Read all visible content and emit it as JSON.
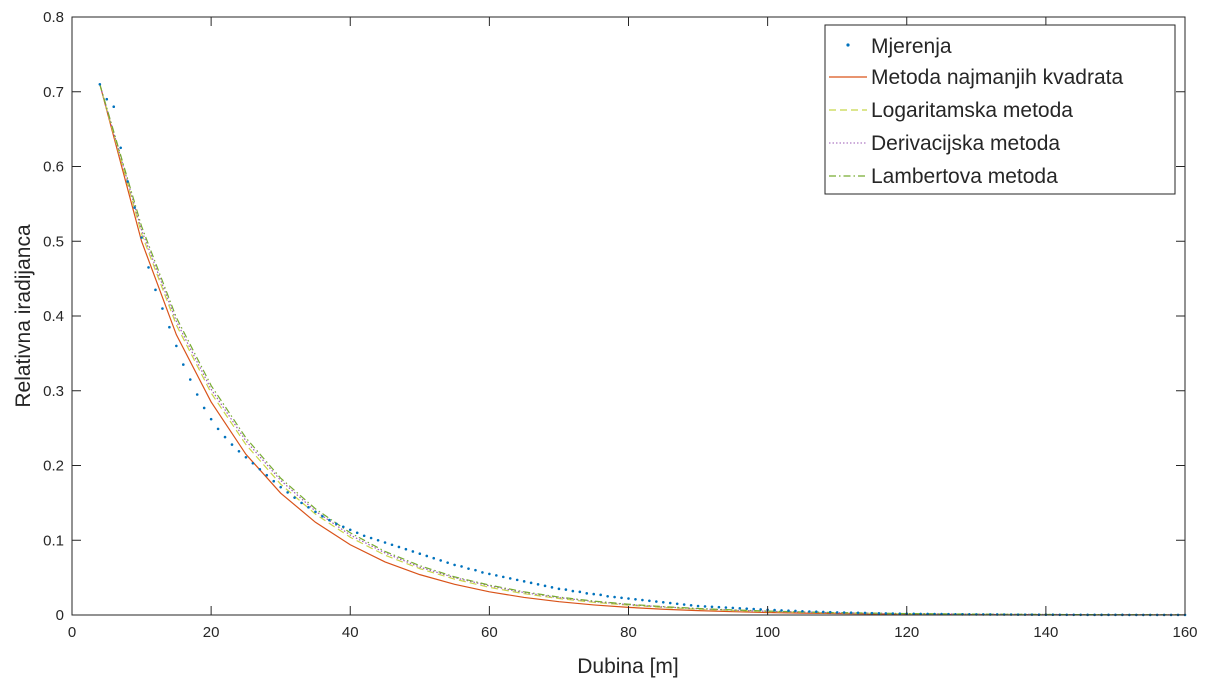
{
  "chart_data": {
    "type": "line",
    "title": "",
    "xlabel": "Dubina [m]",
    "ylabel": "Relativna iradijanca",
    "xlim": [
      0,
      160
    ],
    "ylim": [
      0,
      0.8
    ],
    "xticks": [
      0,
      20,
      40,
      60,
      80,
      100,
      120,
      140,
      160
    ],
    "yticks": [
      0,
      0.1,
      0.2,
      0.3,
      0.4,
      0.5,
      0.6,
      0.7,
      0.8
    ],
    "xtick_labels": [
      "0",
      "20",
      "40",
      "60",
      "80",
      "100",
      "120",
      "140",
      "160"
    ],
    "ytick_labels": [
      "0",
      "0.1",
      "0.2",
      "0.3",
      "0.4",
      "0.5",
      "0.6",
      "0.7",
      "0.8"
    ],
    "grid": false,
    "legend_position": "top-right",
    "series": [
      {
        "name": "Mjerenja",
        "style": "points",
        "color": "#0072BD",
        "x": [
          4,
          5,
          6,
          7,
          8,
          9,
          10,
          11,
          12,
          13,
          14,
          15,
          16,
          17,
          18,
          19,
          20,
          21,
          22,
          23,
          24,
          25,
          26,
          27,
          28,
          29,
          30,
          31,
          32,
          33,
          34,
          35,
          36,
          37,
          38,
          39,
          40,
          41,
          42,
          43,
          44,
          45,
          46,
          47,
          48,
          49,
          50,
          51,
          52,
          53,
          54,
          55,
          56,
          57,
          58,
          59,
          60,
          61,
          62,
          63,
          64,
          65,
          66,
          67,
          68,
          69,
          70,
          71,
          72,
          73,
          74,
          75,
          76,
          77,
          78,
          79,
          80,
          81,
          82,
          83,
          84,
          85,
          86,
          87,
          88,
          89,
          90,
          91,
          92,
          93,
          94,
          95,
          96,
          97,
          98,
          99,
          100,
          101,
          102,
          103,
          104,
          105,
          106,
          107,
          108,
          109,
          110,
          111,
          112,
          113,
          114,
          115,
          116,
          117,
          118,
          119,
          120,
          121,
          122,
          123,
          124,
          125,
          126,
          127,
          128,
          129,
          130,
          131,
          132,
          133,
          134,
          135,
          136,
          137,
          138,
          139,
          140,
          141,
          142,
          143,
          144,
          145,
          146,
          147,
          148,
          149,
          150,
          151,
          152,
          153,
          154,
          155,
          156,
          157,
          158,
          159,
          160
        ],
        "values": [
          0.71,
          0.69,
          0.68,
          0.625,
          0.58,
          0.545,
          0.505,
          0.465,
          0.435,
          0.41,
          0.385,
          0.36,
          0.335,
          0.315,
          0.295,
          0.277,
          0.262,
          0.249,
          0.238,
          0.228,
          0.219,
          0.211,
          0.203,
          0.195,
          0.187,
          0.179,
          0.171,
          0.164,
          0.157,
          0.15,
          0.144,
          0.138,
          0.132,
          0.127,
          0.122,
          0.118,
          0.114,
          0.11,
          0.106,
          0.103,
          0.1,
          0.097,
          0.094,
          0.091,
          0.088,
          0.085,
          0.082,
          0.079,
          0.076,
          0.073,
          0.07,
          0.067,
          0.065,
          0.062,
          0.06,
          0.057,
          0.055,
          0.053,
          0.051,
          0.049,
          0.047,
          0.045,
          0.043,
          0.041,
          0.039,
          0.037,
          0.035,
          0.034,
          0.032,
          0.031,
          0.029,
          0.028,
          0.027,
          0.025,
          0.024,
          0.023,
          0.022,
          0.021,
          0.02,
          0.019,
          0.018,
          0.017,
          0.016,
          0.015,
          0.014,
          0.013,
          0.012,
          0.0115,
          0.011,
          0.0105,
          0.01,
          0.0095,
          0.009,
          0.0085,
          0.008,
          0.0075,
          0.007,
          0.0066,
          0.0062,
          0.0058,
          0.0054,
          0.005,
          0.0047,
          0.0044,
          0.0041,
          0.0038,
          0.0035,
          0.0033,
          0.0031,
          0.0029,
          0.0027,
          0.0025,
          0.0023,
          0.0021,
          0.002,
          0.0018,
          0.0017,
          0.0016,
          0.0015,
          0.0014,
          0.0013,
          0.0012,
          0.0011,
          0.001,
          0.0009,
          0.0009,
          0.0008,
          0.0008,
          0.0007,
          0.0007,
          0.0006,
          0.0006,
          0.0005,
          0.0005,
          0.0005,
          0.0004,
          0.0004,
          0.0004,
          0.0003,
          0.0003,
          0.0003,
          0.0003,
          0.0002,
          0.0002,
          0.0002,
          0.0002,
          0.0002,
          0.0002,
          0.0001,
          0.0001,
          0.0001,
          0.0001,
          0.0001,
          0.0001,
          0.0001,
          0.0001,
          0.0001
        ]
      },
      {
        "name": "Metoda najmanjih kvadrata",
        "style": "solid",
        "color": "#D95319",
        "x": [
          4,
          10,
          15,
          20,
          25,
          30,
          35,
          40,
          45,
          50,
          55,
          60,
          65,
          70,
          75,
          80,
          85,
          90,
          95,
          100,
          105,
          110,
          115,
          120,
          125,
          130,
          135,
          140,
          145,
          150,
          155,
          160
        ],
        "values": [
          0.71,
          0.5,
          0.375,
          0.285,
          0.215,
          0.163,
          0.124,
          0.094,
          0.071,
          0.054,
          0.041,
          0.031,
          0.0235,
          0.0178,
          0.0135,
          0.0102,
          0.0077,
          0.0058,
          0.0044,
          0.0033,
          0.0025,
          0.0019,
          0.0015,
          0.0011,
          0.0008,
          0.0006,
          0.0005,
          0.0004,
          0.0003,
          0.0002,
          0.0002,
          0.0001
        ]
      },
      {
        "name": "Logaritamska metoda",
        "style": "dashed",
        "color": "#C8D64A",
        "x": [
          4,
          10,
          15,
          20,
          25,
          30,
          35,
          40,
          45,
          50,
          55,
          60,
          65,
          70,
          75,
          80,
          85,
          90,
          95,
          100,
          105,
          110,
          115,
          120,
          125,
          130,
          135,
          140,
          145,
          150,
          155,
          160
        ],
        "values": [
          0.71,
          0.51,
          0.388,
          0.297,
          0.228,
          0.175,
          0.135,
          0.104,
          0.08,
          0.062,
          0.048,
          0.037,
          0.0285,
          0.022,
          0.017,
          0.0131,
          0.0101,
          0.0078,
          0.006,
          0.0046,
          0.0036,
          0.0028,
          0.0021,
          0.0016,
          0.0013,
          0.001,
          0.0008,
          0.0006,
          0.0005,
          0.0004,
          0.0003,
          0.0002
        ]
      },
      {
        "name": "Derivacijska metoda",
        "style": "dotted",
        "color": "#9B59B6",
        "x": [
          4,
          10,
          15,
          20,
          25,
          30,
          35,
          40,
          45,
          50,
          55,
          60,
          65,
          70,
          75,
          80,
          85,
          90,
          95,
          100,
          105,
          110,
          115,
          120,
          125,
          130,
          135,
          140,
          145,
          150,
          155,
          160
        ],
        "values": [
          0.71,
          0.515,
          0.393,
          0.302,
          0.233,
          0.18,
          0.139,
          0.107,
          0.083,
          0.064,
          0.05,
          0.039,
          0.03,
          0.0232,
          0.018,
          0.0139,
          0.0108,
          0.0084,
          0.0065,
          0.005,
          0.0039,
          0.003,
          0.0023,
          0.0018,
          0.0014,
          0.0011,
          0.0009,
          0.0007,
          0.0005,
          0.0004,
          0.0003,
          0.0002
        ]
      },
      {
        "name": "Lambertova metoda",
        "style": "dashdot",
        "color": "#77AC30",
        "x": [
          4,
          10,
          15,
          20,
          25,
          30,
          35,
          40,
          45,
          50,
          55,
          60,
          65,
          70,
          75,
          80,
          85,
          90,
          95,
          100,
          105,
          110,
          115,
          120,
          125,
          130,
          135,
          140,
          145,
          150,
          155,
          160
        ],
        "values": [
          0.71,
          0.52,
          0.398,
          0.307,
          0.237,
          0.183,
          0.142,
          0.11,
          0.085,
          0.066,
          0.051,
          0.04,
          0.031,
          0.024,
          0.0186,
          0.0144,
          0.0112,
          0.0087,
          0.0068,
          0.0053,
          0.0041,
          0.0032,
          0.0025,
          0.0019,
          0.0015,
          0.0012,
          0.0009,
          0.0007,
          0.0005,
          0.0004,
          0.0003,
          0.0002
        ]
      }
    ]
  }
}
